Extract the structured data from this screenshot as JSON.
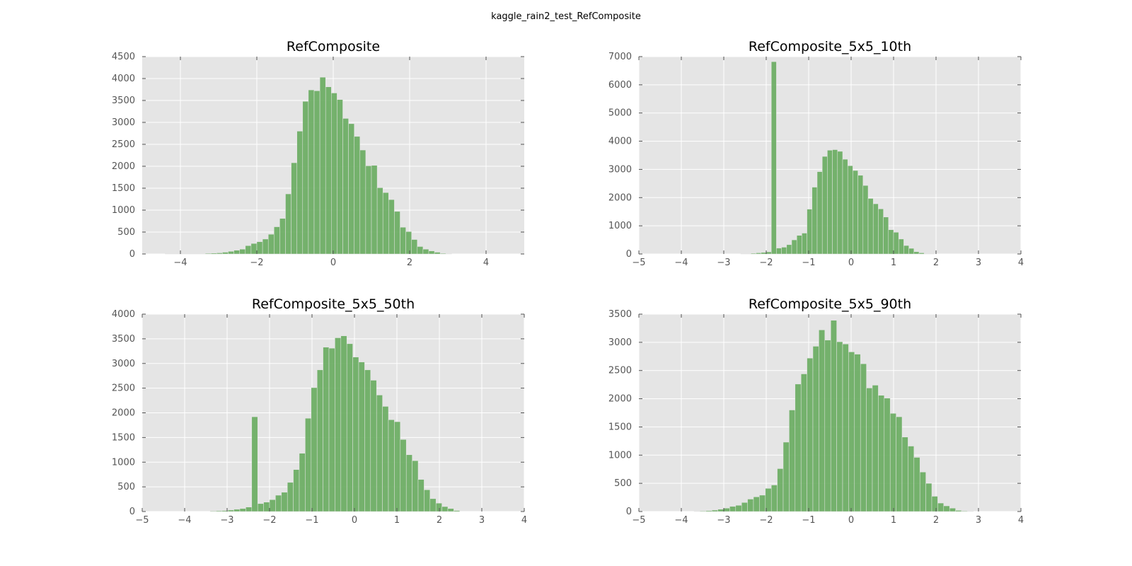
{
  "figure": {
    "suptitle": "kaggle_rain2_test_RefComposite"
  },
  "chart_data": [
    {
      "type": "bar",
      "title": "RefComposite",
      "xlabel": "",
      "ylabel": "",
      "xlim": [
        -5,
        5
      ],
      "ylim": [
        0,
        4500
      ],
      "xticks": [
        -4,
        -2,
        0,
        2,
        4
      ],
      "yticks": [
        0,
        500,
        1000,
        1500,
        2000,
        2500,
        3000,
        3500,
        4000,
        4500
      ],
      "grid": true,
      "bar_color": "#6aad62",
      "bin_start": -4.4,
      "bin_width": 0.15,
      "values": [
        5,
        5,
        5,
        5,
        5,
        5,
        5,
        15,
        20,
        25,
        40,
        60,
        85,
        110,
        190,
        240,
        280,
        340,
        450,
        620,
        810,
        1370,
        2080,
        2800,
        3480,
        3740,
        3720,
        4030,
        3810,
        3670,
        3520,
        3090,
        2970,
        2680,
        2370,
        2010,
        2020,
        1510,
        1400,
        1240,
        970,
        610,
        510,
        330,
        170,
        110,
        70,
        40,
        15,
        5
      ]
    },
    {
      "type": "bar",
      "title": "RefComposite_5x5_10th",
      "xlabel": "",
      "ylabel": "",
      "xlim": [
        -5,
        4
      ],
      "ylim": [
        0,
        7000
      ],
      "xticks": [
        -5,
        -4,
        -3,
        -2,
        -1,
        0,
        1,
        2,
        3,
        4
      ],
      "yticks": [
        0,
        1000,
        2000,
        3000,
        4000,
        5000,
        6000,
        7000
      ],
      "grid": true,
      "bar_color": "#6aad62",
      "bin_start": -2.6,
      "bin_width": 0.12,
      "values": [
        5,
        10,
        25,
        40,
        55,
        75,
        6820,
        210,
        240,
        330,
        500,
        660,
        740,
        1590,
        2370,
        2920,
        3460,
        3680,
        3700,
        3640,
        3360,
        3130,
        2960,
        2790,
        2430,
        1970,
        1780,
        1600,
        1310,
        860,
        770,
        530,
        300,
        200,
        80,
        40,
        10,
        5
      ]
    },
    {
      "type": "bar",
      "title": "RefComposite_5x5_50th",
      "xlabel": "",
      "ylabel": "",
      "xlim": [
        -5,
        4
      ],
      "ylim": [
        0,
        4000
      ],
      "xticks": [
        -5,
        -4,
        -3,
        -2,
        -1,
        0,
        1,
        2,
        3,
        4
      ],
      "yticks": [
        0,
        500,
        1000,
        1500,
        2000,
        2500,
        3000,
        3500,
        4000
      ],
      "grid": true,
      "bar_color": "#6aad62",
      "bin_start": -3.4,
      "bin_width": 0.14,
      "values": [
        10,
        15,
        20,
        30,
        45,
        60,
        90,
        1920,
        160,
        190,
        240,
        330,
        390,
        590,
        850,
        1180,
        1890,
        2510,
        2870,
        3330,
        3310,
        3520,
        3560,
        3400,
        3130,
        3030,
        2870,
        2660,
        2360,
        2130,
        1860,
        1820,
        1460,
        1150,
        1030,
        650,
        440,
        260,
        170,
        100,
        60,
        20
      ]
    },
    {
      "type": "bar",
      "title": "RefComposite_5x5_90th",
      "xlabel": "",
      "ylabel": "",
      "xlim": [
        -5,
        4
      ],
      "ylim": [
        0,
        3500
      ],
      "xticks": [
        -5,
        -4,
        -3,
        -2,
        -1,
        0,
        1,
        2,
        3,
        4
      ],
      "yticks": [
        0,
        500,
        1000,
        1500,
        2000,
        2500,
        3000,
        3500
      ],
      "grid": true,
      "bar_color": "#6aad62",
      "bin_start": -3.7,
      "bin_width": 0.14,
      "values": [
        5,
        10,
        15,
        25,
        40,
        60,
        90,
        110,
        160,
        220,
        260,
        290,
        410,
        470,
        760,
        1230,
        1800,
        2260,
        2440,
        2720,
        2930,
        3220,
        3040,
        3390,
        3010,
        2970,
        2830,
        2790,
        2620,
        2190,
        2240,
        2060,
        2010,
        1740,
        1680,
        1320,
        1160,
        960,
        700,
        500,
        270,
        150,
        100,
        60,
        20,
        10,
        5
      ]
    }
  ]
}
